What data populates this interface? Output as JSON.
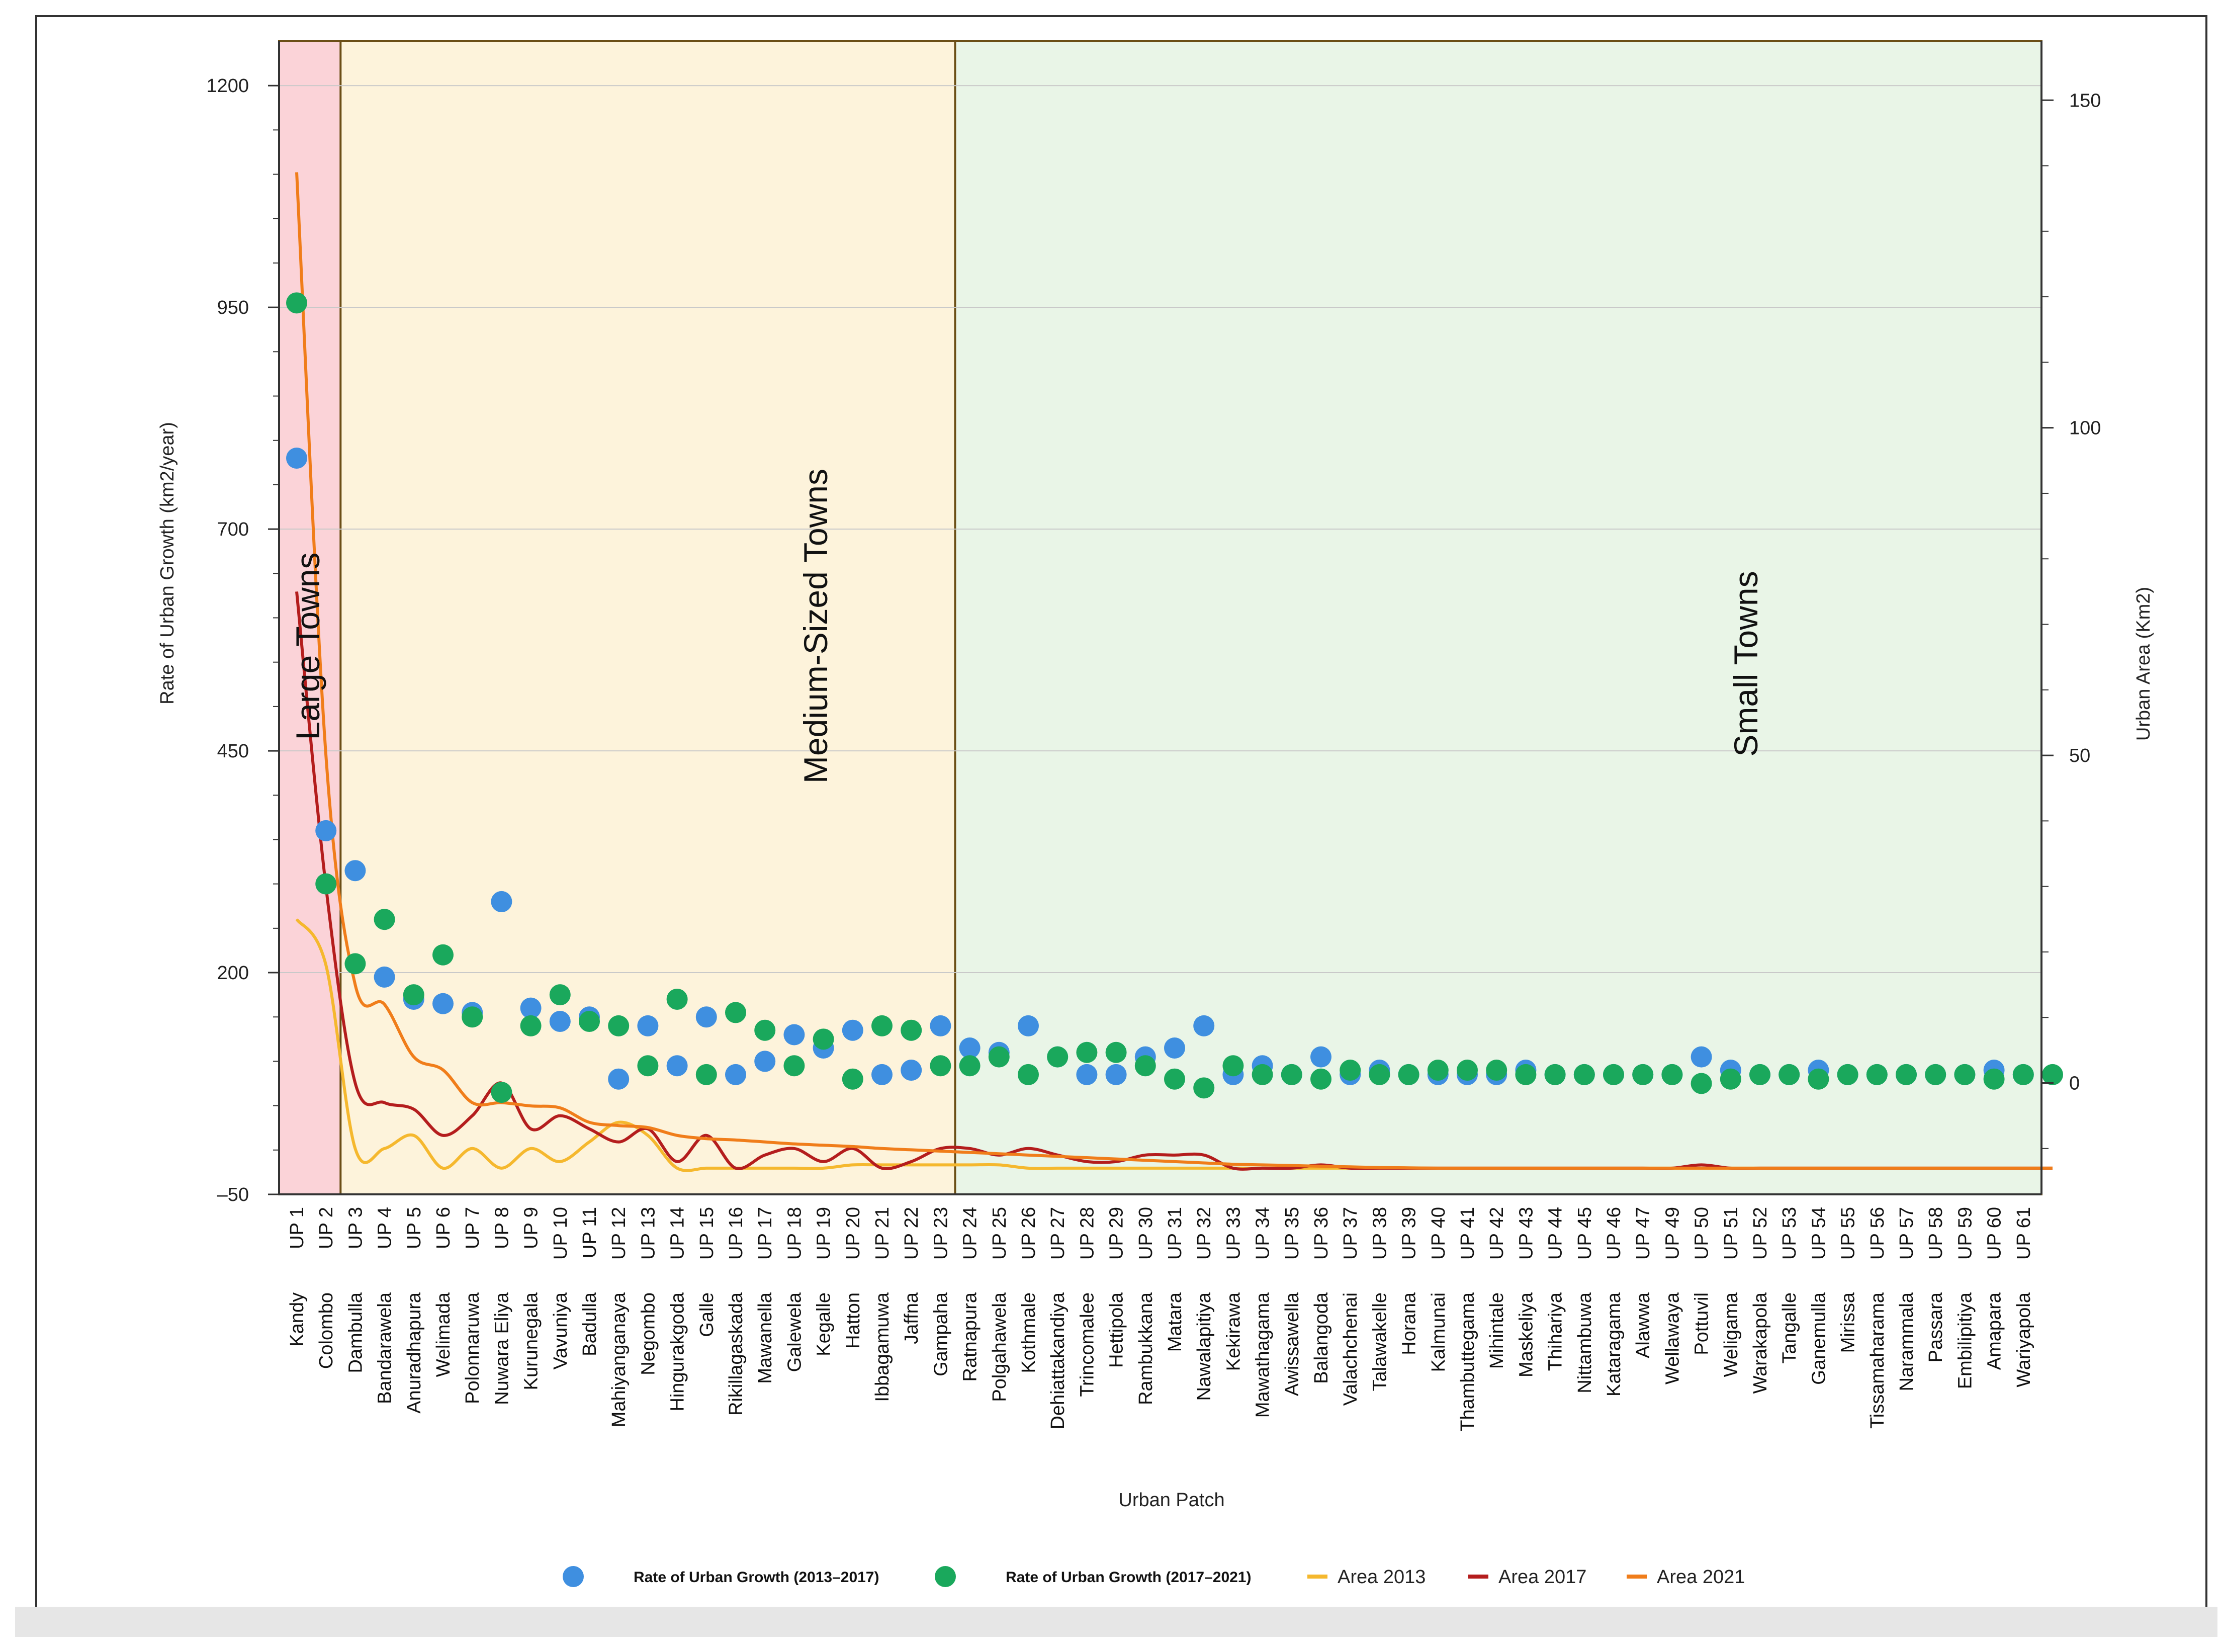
{
  "chart_data": {
    "type": "scatter",
    "xlabel": "Urban Patch",
    "ylabel_left": "Rate of Urban Growth (km2/year)",
    "ylabel_right": "Urban Area (Km2)",
    "ylim_left": [
      -50,
      1250
    ],
    "ylim_right": [
      -17,
      159
    ],
    "yticks_left": [
      -50,
      200,
      450,
      700,
      950,
      1200
    ],
    "ytick_labels_left": [
      "–50",
      "200",
      "450",
      "700",
      "950",
      "1200"
    ],
    "yticks_right": [
      0,
      50,
      100,
      150
    ],
    "ytick_labels_right": [
      "0",
      "50",
      "100",
      "150"
    ],
    "categories": [
      {
        "patch": "UP 1",
        "town": "Kandy"
      },
      {
        "patch": "UP 2",
        "town": "Colombo"
      },
      {
        "patch": "UP  3",
        "town": "Dambulla"
      },
      {
        "patch": "UP  4",
        "town": "Bandarawela"
      },
      {
        "patch": "UP  5",
        "town": "Anuradhapura"
      },
      {
        "patch": "UP  6",
        "town": "Welimada"
      },
      {
        "patch": "UP  7",
        "town": "Polonnaruwa"
      },
      {
        "patch": "UP  8",
        "town": "Nuwara Eliya"
      },
      {
        "patch": "UP  9",
        "town": "Kurunegala"
      },
      {
        "patch": "UP 10",
        "town": "Vavuniya"
      },
      {
        "patch": "UP 11",
        "town": "Badulla"
      },
      {
        "patch": "UP 12",
        "town": "Mahiyanganaya"
      },
      {
        "patch": "UP 13",
        "town": "Negombo"
      },
      {
        "patch": "UP 14",
        "town": "Hingurakgoda"
      },
      {
        "patch": "UP 15",
        "town": "Galle"
      },
      {
        "patch": "UP 16",
        "town": "Rikillagaskada"
      },
      {
        "patch": "UP 17",
        "town": "Mawanella"
      },
      {
        "patch": "UP 18",
        "town": "Galewela"
      },
      {
        "patch": "UP 19",
        "town": "Kegalle"
      },
      {
        "patch": "UP 20",
        "town": "Hatton"
      },
      {
        "patch": "UP 21",
        "town": "Ibbagamuwa"
      },
      {
        "patch": "UP 22",
        "town": "Jaffna"
      },
      {
        "patch": "UP 23",
        "town": "Gampaha"
      },
      {
        "patch": "UP 24",
        "town": "Ratnapura"
      },
      {
        "patch": "UP 25",
        "town": "Polgahawela"
      },
      {
        "patch": "UP 26",
        "town": "Kothmale"
      },
      {
        "patch": "UP 27",
        "town": "Dehiattakandiya"
      },
      {
        "patch": "UP 28",
        "town": "Trincomalee"
      },
      {
        "patch": "UP 29",
        "town": "Hettipola"
      },
      {
        "patch": "UP 30",
        "town": "Rambukkana"
      },
      {
        "patch": "UP 31",
        "town": "Matara"
      },
      {
        "patch": "UP 32",
        "town": "Nawalapitiya"
      },
      {
        "patch": "UP 33",
        "town": "Kekirawa"
      },
      {
        "patch": "UP 34",
        "town": "Mawathagama"
      },
      {
        "patch": "UP 35",
        "town": "Awissawella"
      },
      {
        "patch": "UP 36",
        "town": "Balangoda"
      },
      {
        "patch": "UP 37",
        "town": "Valachchenai"
      },
      {
        "patch": "UP 38",
        "town": "Talawakelle"
      },
      {
        "patch": "UP 39",
        "town": "Horana"
      },
      {
        "patch": "UP 40",
        "town": "Kalmunai"
      },
      {
        "patch": "UP 41",
        "town": "Thambuttegama"
      },
      {
        "patch": "UP 42",
        "town": "Mihintale"
      },
      {
        "patch": "UP 43",
        "town": "Maskeliya"
      },
      {
        "patch": "UP 44",
        "town": "Thihariya"
      },
      {
        "patch": "UP 45",
        "town": "Nittambuwa"
      },
      {
        "patch": "UP 46",
        "town": "Kataragama"
      },
      {
        "patch": "UP 47",
        "town": "Alawwa"
      },
      {
        "patch": "UP 49",
        "town": "Wellawaya"
      },
      {
        "patch": "UP 50",
        "town": "Pottuvil"
      },
      {
        "patch": "UP 51",
        "town": "Weligama"
      },
      {
        "patch": "UP 52",
        "town": "Warakapola"
      },
      {
        "patch": "UP 53",
        "town": "Tangalle"
      },
      {
        "patch": "UP 54",
        "town": "Ganemulla"
      },
      {
        "patch": "UP 55",
        "town": "Mirissa"
      },
      {
        "patch": "UP 56",
        "town": "Tissamaharama"
      },
      {
        "patch": "UP 57",
        "town": "Narammala"
      },
      {
        "patch": "UP 58",
        "town": "Passara"
      },
      {
        "patch": "UP 59",
        "town": "Embilipitiya"
      },
      {
        "patch": "UP 60",
        "town": "Amapara"
      },
      {
        "patch": "UP 61",
        "town": "Wariyapola"
      },
      {
        "patch": "",
        "town": ""
      }
    ],
    "regions": [
      {
        "label": "Large Towns",
        "from_index": 0,
        "to_index": 1,
        "color": "#fbd3d8",
        "label_y": 550
      },
      {
        "label": "Medium-Sized Towns",
        "from_index": 2,
        "to_index": 22,
        "color": "#fdf3db",
        "label_y": 560
      },
      {
        "label": "Small Towns",
        "from_index": 23,
        "to_index": 60,
        "color": "#e9f5e7",
        "label_y": 450
      }
    ],
    "series": [
      {
        "name": "Rate of Urban Growth (2013–2017)",
        "kind": "scatter",
        "axis": "left",
        "color": "#3f8fe0",
        "values": [
          780,
          360,
          315,
          195,
          170,
          165,
          155,
          280,
          160,
          145,
          150,
          80,
          140,
          95,
          150,
          85,
          100,
          130,
          115,
          135,
          85,
          90,
          140,
          115,
          110,
          140,
          105,
          85,
          85,
          105,
          115,
          140,
          85,
          95,
          85,
          105,
          85,
          90,
          85,
          85,
          85,
          85,
          90,
          85,
          85,
          85,
          85,
          85,
          105,
          90,
          85,
          85,
          90,
          85,
          85,
          85,
          85,
          85,
          90,
          85,
          null
        ]
      },
      {
        "name": "Rate of Urban Growth (2017–2021)",
        "kind": "scatter",
        "axis": "left",
        "color": "#1aa85c",
        "values": [
          955,
          300,
          210,
          260,
          175,
          220,
          150,
          65,
          140,
          175,
          145,
          140,
          95,
          170,
          85,
          155,
          135,
          95,
          125,
          80,
          140,
          135,
          95,
          95,
          105,
          85,
          105,
          110,
          110,
          95,
          80,
          70,
          95,
          85,
          85,
          80,
          90,
          85,
          85,
          90,
          90,
          90,
          85,
          85,
          85,
          85,
          85,
          85,
          75,
          80,
          85,
          85,
          80,
          85,
          85,
          85,
          85,
          85,
          80,
          85,
          85
        ]
      },
      {
        "name": "Area 2013",
        "kind": "line",
        "axis": "right",
        "color": "#f5b82e",
        "values": [
          25,
          18,
          -10,
          -10,
          -8,
          -13,
          -10,
          -13,
          -10,
          -12,
          -9,
          -6,
          -8,
          -13,
          -13,
          -13,
          -13,
          -13,
          -13,
          -12.5,
          -12.5,
          -12.5,
          -12.5,
          -12.5,
          -12.5,
          -13,
          -13,
          -13,
          -13,
          -13,
          -13,
          -13,
          -13,
          -13,
          -13,
          -13,
          -13,
          -13,
          -13,
          -13,
          -13,
          -13,
          -13,
          -13,
          -13,
          -13,
          -13,
          -13,
          -13,
          -13,
          -13,
          -13,
          -13,
          -13,
          -13,
          -13,
          -13,
          -13,
          -13,
          -13,
          -13
        ]
      },
      {
        "name": "Area 2017",
        "kind": "line",
        "axis": "right",
        "color": "#b41d1d",
        "values": [
          75,
          30,
          0,
          -3,
          -4,
          -8,
          -5,
          0,
          -7,
          -5,
          -7,
          -9,
          -7,
          -12,
          -8,
          -13,
          -11,
          -10,
          -12,
          -10,
          -13,
          -12,
          -10,
          -10,
          -11,
          -10,
          -11,
          -12,
          -12,
          -11,
          -11,
          -11,
          -13,
          -13,
          -13,
          -12.5,
          -13,
          -13,
          -13,
          -13,
          -13,
          -13,
          -13,
          -13,
          -13,
          -13,
          -13,
          -13,
          -12.5,
          -13,
          -13,
          -13,
          -13,
          -13,
          -13,
          -13,
          -13,
          -13,
          -13,
          -13,
          -13
        ]
      },
      {
        "name": "Area 2021",
        "kind": "line",
        "axis": "right",
        "color": "#f07d1a",
        "values": [
          139,
          50,
          15,
          12,
          4,
          2,
          -3,
          -3,
          -3.5,
          -3.8,
          -6,
          -6.5,
          -6.8,
          -8,
          -8.5,
          -8.7,
          -9,
          -9.3,
          -9.5,
          -9.7,
          -10,
          -10.2,
          -10.4,
          -10.6,
          -10.8,
          -11,
          -11.2,
          -11.4,
          -11.6,
          -11.8,
          -12,
          -12.2,
          -12.4,
          -12.5,
          -12.6,
          -12.7,
          -12.8,
          -12.9,
          -12.95,
          -13,
          -13,
          -13,
          -13,
          -13,
          -13,
          -13,
          -13,
          -13,
          -13,
          -13,
          -13,
          -13,
          -13,
          -13,
          -13,
          -13,
          -13,
          -13,
          -13,
          -13,
          -13
        ]
      }
    ],
    "legend": [
      {
        "label": "Rate of Urban Growth (2013–2017)",
        "type": "dot",
        "color": "#3f8fe0"
      },
      {
        "label": "Rate of Urban Growth (2017–2021)",
        "type": "dot",
        "color": "#1aa85c"
      },
      {
        "label": "Area 2013",
        "type": "line",
        "color": "#f5b82e"
      },
      {
        "label": "Area 2017",
        "type": "line",
        "color": "#b41d1d"
      },
      {
        "label": "Area 2021",
        "type": "line",
        "color": "#f07d1a"
      }
    ],
    "legend_position": "bottom"
  }
}
